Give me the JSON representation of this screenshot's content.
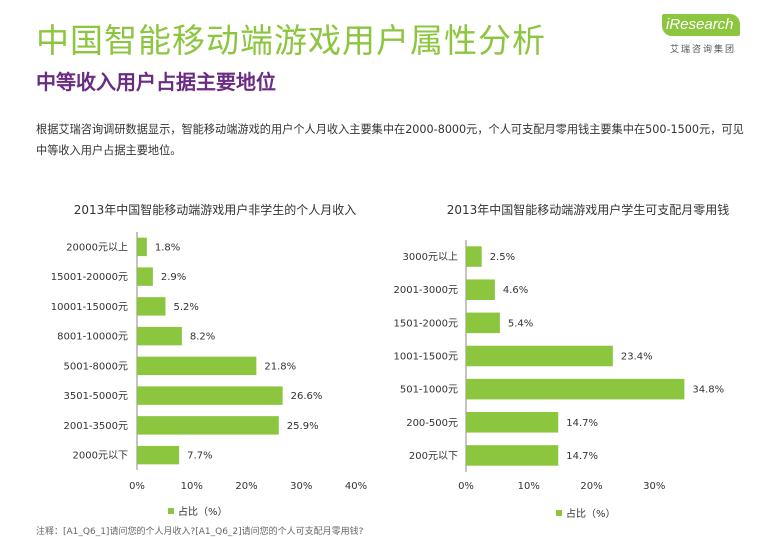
{
  "header": {
    "title": "中国智能移动端游戏用户属性分析",
    "subtitle": "中等收入用户占据主要地位",
    "logo_text": "iResearch",
    "logo_sub": "艾瑞咨询集团"
  },
  "description": "根据艾瑞咨询调研数据显示，智能移动端游戏的用户个人月收入主要集中在2000-8000元，个人可支配月零用钱主要集中在500-1500元，可见中等收入用户占据主要地位。",
  "footnote": "注释：[A1_Q6_1]请问您的个人月收入?[A1_Q6_2]请问您的个人可支配月零用钱?",
  "colors": {
    "accent": "#8cc63f",
    "subtitle": "#6a2c82",
    "bar": "#8cc63f"
  },
  "chart_data": [
    {
      "type": "bar",
      "orientation": "horizontal",
      "title": "2013年中国智能移动端游戏用户非学生的个人月收入",
      "categories": [
        "20000元以上",
        "15001-20000元",
        "10001-15000元",
        "8001-10000元",
        "5001-8000元",
        "3501-5000元",
        "2001-3500元",
        "2000元以下"
      ],
      "values": [
        1.8,
        2.9,
        5.2,
        8.2,
        21.8,
        26.6,
        25.9,
        7.7
      ],
      "value_labels": [
        "1.8%",
        "2.9%",
        "5.2%",
        "8.2%",
        "21.8%",
        "26.6%",
        "25.9%",
        "7.7%"
      ],
      "xlim": [
        0,
        40
      ],
      "xticks": [
        0,
        10,
        20,
        30,
        40
      ],
      "xtick_labels": [
        "0%",
        "10%",
        "20%",
        "30%",
        "40%"
      ],
      "legend": "占比（%）",
      "grid": false
    },
    {
      "type": "bar",
      "orientation": "horizontal",
      "title": "2013年中国智能移动端游戏用户学生可支配月零用钱",
      "categories": [
        "3000元以上",
        "2001-3000元",
        "1501-2000元",
        "1001-1500元",
        "501-1000元",
        "200-500元",
        "200元以下"
      ],
      "values": [
        2.5,
        4.6,
        5.4,
        23.4,
        34.8,
        14.7,
        14.7
      ],
      "value_labels": [
        "2.5%",
        "4.6%",
        "5.4%",
        "23.4%",
        "34.8%",
        "14.7%",
        "14.7%"
      ],
      "xlim": [
        0,
        40
      ],
      "xticks": [
        0,
        10,
        20,
        30
      ],
      "xtick_labels": [
        "0%",
        "10%",
        "20%",
        "30%"
      ],
      "legend": "占比（%）",
      "grid": false
    }
  ]
}
